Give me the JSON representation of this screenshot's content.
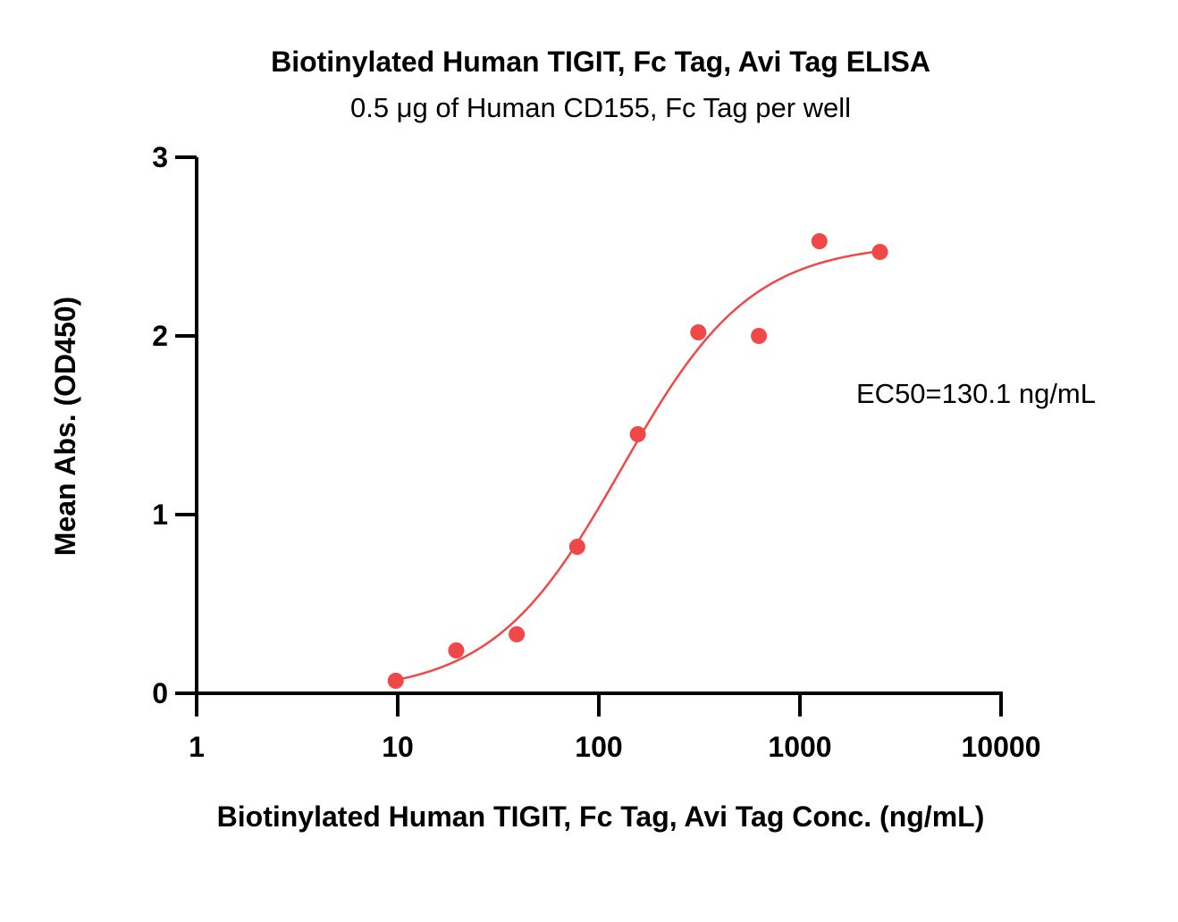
{
  "chart_data": {
    "type": "scatter",
    "title": "Biotinylated Human TIGIT, Fc Tag, Avi Tag ELISA",
    "subtitle": "0.5 μg of Human CD155, Fc Tag per well",
    "xlabel": "Biotinylated Human TIGIT, Fc Tag, Avi Tag Conc. (ng/mL)",
    "ylabel": "Mean Abs. (OD450)",
    "x_scale": "log",
    "xlim": [
      1,
      10000
    ],
    "ylim": [
      0,
      3
    ],
    "x_ticks": [
      "1",
      "10",
      "100",
      "1000",
      "10000"
    ],
    "y_ticks": [
      "0",
      "1",
      "2",
      "3"
    ],
    "grid": false,
    "annotation": "EC50=130.1 ng/mL",
    "color": "#f04848",
    "series": [
      {
        "x": [
          9.77,
          19.53,
          39.06,
          78.13,
          156.25,
          312.5,
          625,
          1250,
          2500
        ],
        "y": [
          0.07,
          0.24,
          0.33,
          0.82,
          1.45,
          2.02,
          2.0,
          2.53,
          2.47
        ]
      }
    ],
    "fit": {
      "model": "4PL",
      "bottom": 0.0,
      "top": 2.52,
      "ec50": 130.1,
      "hill": 1.35
    }
  }
}
